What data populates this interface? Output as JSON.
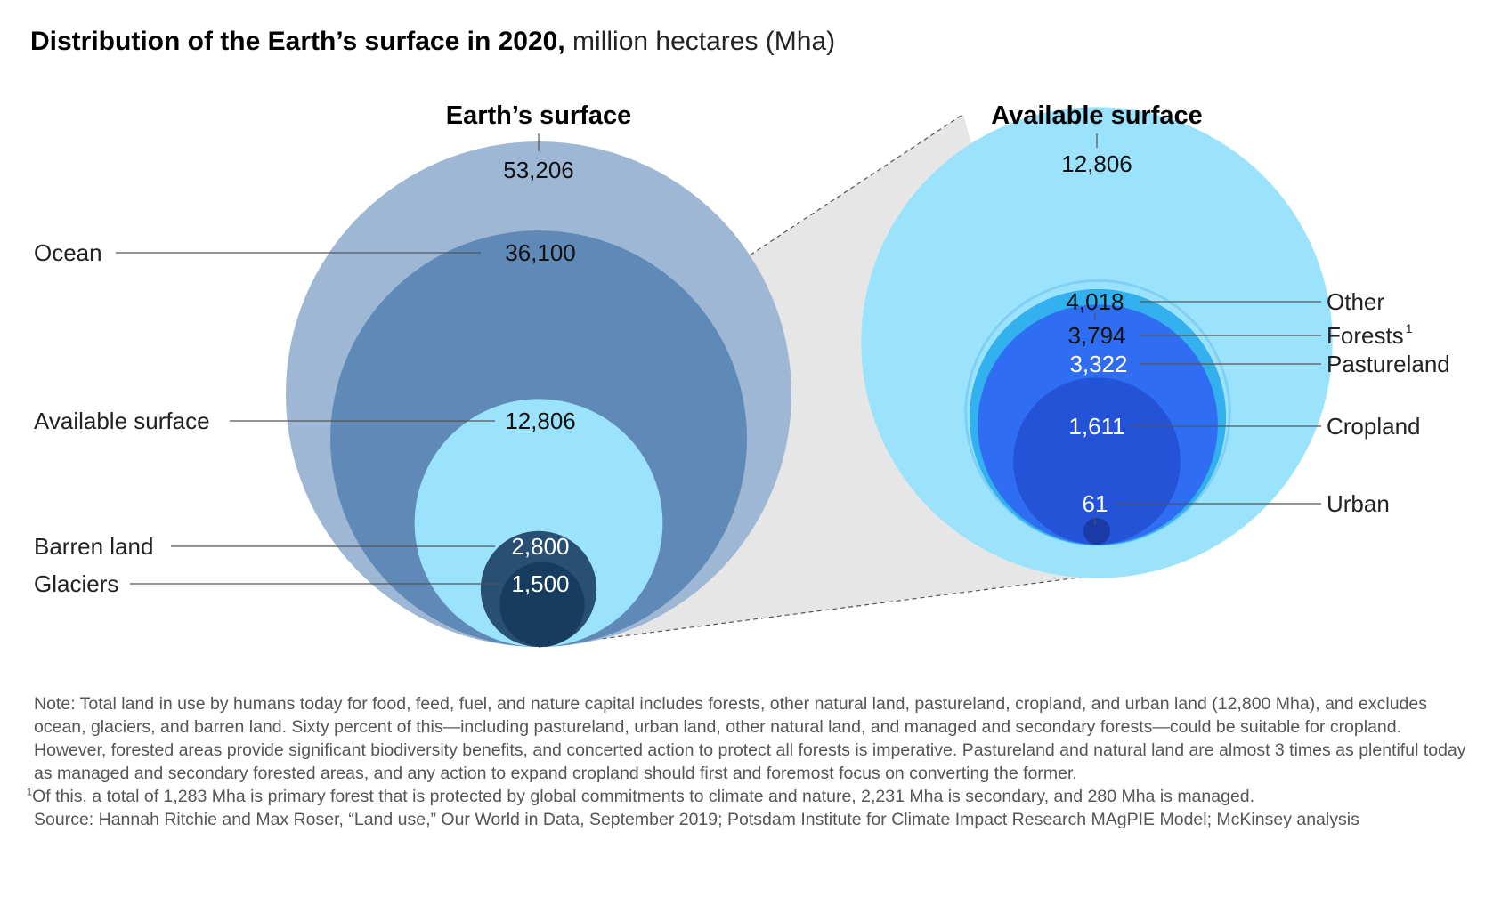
{
  "title": {
    "bold": "Distribution of the Earth’s surface in 2020,",
    "light": "million hectares (Mha)"
  },
  "colors": {
    "earth_surface": "#9db7d5",
    "ocean": "#5f89b6",
    "available_surface": "#9be3fd",
    "barren_land": "#2a4f75",
    "glaciers": "#183c5e",
    "zoom_cone": "#e6e6e6",
    "other": "#9be3fd",
    "forests": "#64c8f0",
    "forests_ring": "#33b0ee",
    "pastureland": "#2f6ef3",
    "cropland": "#2553d8",
    "urban": "#1a3aa8"
  },
  "chart_data": [
    {
      "type": "nested-circles",
      "title": "Earth’s surface",
      "items": [
        {
          "key": "earth_surface",
          "label": "",
          "value": 53206,
          "value_label": "53,206"
        },
        {
          "key": "ocean",
          "label": "Ocean",
          "value": 36100,
          "value_label": "36,100"
        },
        {
          "key": "available_surface",
          "label": "Available surface",
          "value": 12806,
          "value_label": "12,806"
        },
        {
          "key": "barren_land",
          "label": "Barren land",
          "value": 2800,
          "value_label": "2,800"
        },
        {
          "key": "glaciers",
          "label": "Glaciers",
          "value": 1500,
          "value_label": "1,500"
        }
      ]
    },
    {
      "type": "nested-circles",
      "title": "Available surface",
      "items": [
        {
          "key": "available_surface",
          "label": "",
          "value": 12806,
          "value_label": "12,806"
        },
        {
          "key": "other",
          "label": "Other",
          "value": 4018,
          "value_label": "4,018"
        },
        {
          "key": "forests",
          "label": "Forests",
          "label_sup": "1",
          "value": 3794,
          "value_label": "3,794"
        },
        {
          "key": "pastureland",
          "label": "Pastureland",
          "value": 3322,
          "value_label": "3,322"
        },
        {
          "key": "cropland",
          "label": "Cropland",
          "value": 1611,
          "value_label": "1,611"
        },
        {
          "key": "urban",
          "label": "Urban",
          "value": 61,
          "value_label": "61"
        }
      ]
    }
  ],
  "notes": {
    "note": "Note: Total land in use by humans today for food, feed, fuel, and nature capital includes forests, other natural land, pastureland, cropland, and urban land (12,800 Mha), and excludes ocean, glaciers, and barren land. Sixty percent of this—including pastureland, urban land, other natural land, and managed and secondary forests—could be suitable for cropland. However, forested areas provide significant biodiversity benefits, and concerted action to protect all forests is imperative. Pastureland and natural land are almost 3 times as plentiful today as managed and secondary forested areas, and any action to expand cropland should first and foremost focus on converting the former.",
    "footnote_marker": "1",
    "footnote": "Of this, a total of 1,283 Mha is primary forest that is protected by global commitments to climate and nature, 2,231 Mha is secondary, and 280 Mha is managed.",
    "source": "Source: Hannah Ritchie and Max Roser, “Land use,” Our World in Data, September 2019; Potsdam Institute for Climate Impact Research MAgPIE Model; McKinsey analysis"
  }
}
